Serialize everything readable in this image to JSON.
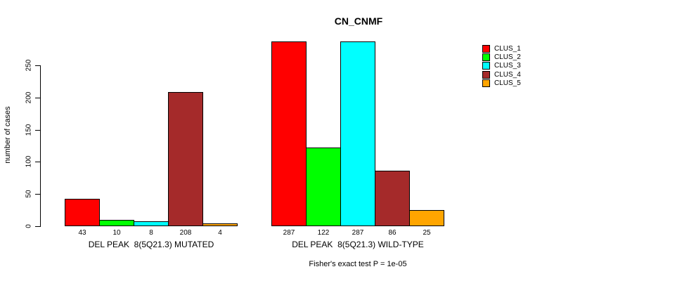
{
  "chart_data": {
    "type": "bar",
    "title": "CN_CNMF",
    "ylabel": "number of cases",
    "xlabel": "",
    "ylim": [
      0,
      287
    ],
    "yticks": [
      0,
      50,
      100,
      150,
      200,
      250
    ],
    "grid": false,
    "legend_position": "right",
    "series": [
      {
        "name": "CLUS_1",
        "color": "#FF0000"
      },
      {
        "name": "CLUS_2",
        "color": "#00FF00"
      },
      {
        "name": "CLUS_3",
        "color": "#00FFFF"
      },
      {
        "name": "CLUS_4",
        "color": "#A52A2A"
      },
      {
        "name": "CLUS_5",
        "color": "#FFA500"
      }
    ],
    "groups": [
      {
        "label": "DEL PEAK  8(5Q21.3) MUTATED",
        "values": [
          43,
          10,
          8,
          208,
          4
        ]
      },
      {
        "label": "DEL PEAK  8(5Q21.3) WILD-TYPE",
        "values": [
          287,
          122,
          287,
          86,
          25
        ]
      }
    ],
    "bar_value_labels_shown": true,
    "annotation": "Fisher's exact test P = 1e-05",
    "colors": {
      "background": "#FFFFFF",
      "axis": "#000000",
      "bar_border": "#000000"
    }
  }
}
